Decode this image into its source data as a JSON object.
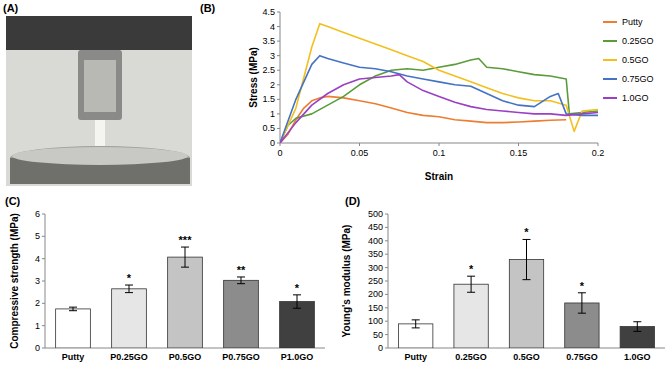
{
  "photo": {
    "label": "(A)"
  },
  "chart_data": [
    {
      "type": "line",
      "title": "(B)",
      "x_label": "Strain",
      "y_label": "Stress (MPa)",
      "xlim": [
        0,
        0.2
      ],
      "xticks": [
        0,
        0.05,
        0.1,
        0.15,
        0.2
      ],
      "ylim": [
        0,
        4.5
      ],
      "yticks": [
        0,
        0.5,
        1,
        1.5,
        2,
        2.5,
        3,
        3.5,
        4,
        4.5
      ],
      "legend": "right",
      "series": [
        {
          "name": "Putty",
          "color": "#ed7d31",
          "x": [
            0,
            0.005,
            0.01,
            0.015,
            0.02,
            0.025,
            0.03,
            0.04,
            0.05,
            0.06,
            0.07,
            0.08,
            0.09,
            0.1,
            0.11,
            0.12,
            0.13,
            0.14,
            0.15,
            0.16,
            0.17,
            0.18
          ],
          "values": [
            0,
            0.3,
            0.8,
            1.2,
            1.45,
            1.55,
            1.6,
            1.55,
            1.45,
            1.35,
            1.2,
            1.05,
            0.95,
            0.9,
            0.8,
            0.75,
            0.7,
            0.7,
            0.72,
            0.75,
            0.78,
            0.8
          ]
        },
        {
          "name": "0.25GO",
          "color": "#5b9b3a",
          "x": [
            0,
            0.005,
            0.01,
            0.02,
            0.03,
            0.04,
            0.05,
            0.06,
            0.07,
            0.08,
            0.09,
            0.1,
            0.11,
            0.12,
            0.125,
            0.13,
            0.14,
            0.15,
            0.16,
            0.17,
            0.18,
            0.182,
            0.19,
            0.2
          ],
          "values": [
            0,
            0.6,
            0.85,
            1.0,
            1.3,
            1.6,
            2.0,
            2.3,
            2.5,
            2.55,
            2.5,
            2.6,
            2.7,
            2.85,
            2.9,
            2.6,
            2.55,
            2.45,
            2.35,
            2.3,
            2.2,
            1.0,
            1.05,
            1.1
          ]
        },
        {
          "name": "0.5GO",
          "color": "#f2c01e",
          "x": [
            0,
            0.01,
            0.02,
            0.025,
            0.03,
            0.04,
            0.05,
            0.06,
            0.07,
            0.08,
            0.09,
            0.1,
            0.11,
            0.12,
            0.13,
            0.14,
            0.15,
            0.16,
            0.17,
            0.18,
            0.185,
            0.19,
            0.2
          ],
          "values": [
            0,
            1.2,
            3.3,
            4.1,
            4.0,
            3.8,
            3.6,
            3.4,
            3.2,
            3.0,
            2.8,
            2.5,
            2.3,
            2.1,
            1.9,
            1.7,
            1.55,
            1.45,
            1.45,
            1.3,
            0.4,
            1.1,
            1.15
          ]
        },
        {
          "name": "0.75GO",
          "color": "#4472c4",
          "x": [
            0,
            0.01,
            0.02,
            0.025,
            0.03,
            0.04,
            0.05,
            0.06,
            0.07,
            0.08,
            0.09,
            0.1,
            0.11,
            0.12,
            0.13,
            0.14,
            0.15,
            0.16,
            0.17,
            0.175,
            0.18,
            0.19,
            0.2
          ],
          "values": [
            0,
            1.5,
            2.7,
            3.0,
            2.9,
            2.75,
            2.6,
            2.55,
            2.45,
            2.3,
            2.2,
            2.1,
            2.0,
            1.95,
            1.7,
            1.45,
            1.3,
            1.25,
            1.6,
            1.7,
            1.0,
            0.95,
            0.95
          ]
        },
        {
          "name": "1.0GO",
          "color": "#9b3fc4",
          "x": [
            0,
            0.01,
            0.02,
            0.03,
            0.04,
            0.05,
            0.06,
            0.07,
            0.075,
            0.08,
            0.09,
            0.1,
            0.11,
            0.12,
            0.13,
            0.14,
            0.15,
            0.16,
            0.17,
            0.18,
            0.19,
            0.2
          ],
          "values": [
            0,
            0.7,
            1.3,
            1.7,
            2.0,
            2.2,
            2.25,
            2.3,
            2.35,
            2.1,
            1.8,
            1.6,
            1.4,
            1.25,
            1.15,
            1.1,
            1.05,
            1.0,
            1.0,
            0.95,
            1.0,
            1.05
          ]
        }
      ]
    },
    {
      "type": "bar",
      "title": "(C)",
      "y_label": "Compressive strength (MPa)",
      "categories": [
        "Putty",
        "P0.25GO",
        "P0.5GO",
        "P0.75GO",
        "P1.0GO"
      ],
      "values": [
        1.75,
        2.65,
        4.07,
        3.03,
        2.08
      ],
      "errors": [
        0.08,
        0.17,
        0.45,
        0.15,
        0.3
      ],
      "annotations": [
        null,
        "*",
        "***",
        "**",
        "*"
      ],
      "colors": [
        "#ffffff",
        "#e6e6e6",
        "#c4c4c4",
        "#8c8c8c",
        "#404040"
      ],
      "ylim": [
        0,
        6
      ],
      "yticks": [
        0,
        1,
        2,
        3,
        4,
        5,
        6
      ]
    },
    {
      "type": "bar",
      "title": "(D)",
      "y_label": "Young's modulus (MPa)",
      "categories": [
        "Putty",
        "0.25GO",
        "0.5GO",
        "0.75GO",
        "1.0GO"
      ],
      "values": [
        90,
        238,
        330,
        168,
        80
      ],
      "errors": [
        15,
        30,
        75,
        38,
        18
      ],
      "annotations": [
        null,
        "*",
        "*",
        "*",
        null
      ],
      "colors": [
        "#ffffff",
        "#e6e6e6",
        "#c4c4c4",
        "#8c8c8c",
        "#404040"
      ],
      "ylim": [
        0,
        500
      ],
      "yticks": [
        0,
        50,
        100,
        150,
        200,
        250,
        300,
        350,
        400,
        450,
        500
      ]
    }
  ]
}
